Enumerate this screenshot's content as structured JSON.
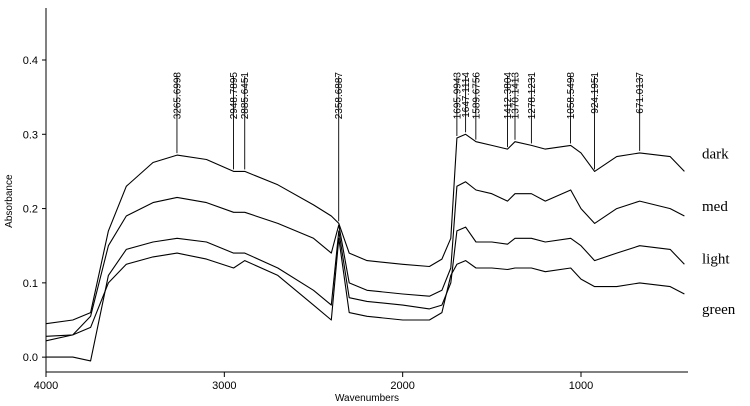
{
  "chart_data": {
    "type": "line",
    "title": "",
    "xlabel": "Wavenumbers",
    "ylabel": "Absorbance",
    "xlim": [
      4000,
      400
    ],
    "ylim": [
      -0.02,
      0.47
    ],
    "x_ticks": [
      "4000",
      "3000",
      "2000",
      "1000"
    ],
    "y_ticks": [
      "0.0",
      "0.1",
      "0.2",
      "0.3",
      "0.4"
    ],
    "peaks": [
      "3265.6998",
      "2948.7895",
      "2885.6451",
      "2358.6887",
      "1695.9943",
      "1647.1114",
      "1589.6756",
      "1412.3804",
      "1370.1413",
      "1278.1231",
      "1058.5498",
      "924.1951",
      "671.0137"
    ],
    "series": [
      {
        "name": "dark",
        "points": [
          [
            4000,
            0.045
          ],
          [
            3850,
            0.05
          ],
          [
            3750,
            0.06
          ],
          [
            3650,
            0.17
          ],
          [
            3550,
            0.23
          ],
          [
            3400,
            0.262
          ],
          [
            3265,
            0.272
          ],
          [
            3100,
            0.266
          ],
          [
            2948,
            0.25
          ],
          [
            2885,
            0.25
          ],
          [
            2700,
            0.232
          ],
          [
            2500,
            0.205
          ],
          [
            2400,
            0.19
          ],
          [
            2358,
            0.18
          ],
          [
            2300,
            0.14
          ],
          [
            2200,
            0.13
          ],
          [
            2000,
            0.125
          ],
          [
            1850,
            0.122
          ],
          [
            1780,
            0.132
          ],
          [
            1730,
            0.16
          ],
          [
            1696,
            0.295
          ],
          [
            1647,
            0.3
          ],
          [
            1589,
            0.29
          ],
          [
            1500,
            0.285
          ],
          [
            1412,
            0.28
          ],
          [
            1370,
            0.29
          ],
          [
            1278,
            0.285
          ],
          [
            1200,
            0.28
          ],
          [
            1058,
            0.285
          ],
          [
            1000,
            0.275
          ],
          [
            924,
            0.25
          ],
          [
            800,
            0.27
          ],
          [
            671,
            0.275
          ],
          [
            500,
            0.27
          ],
          [
            420,
            0.25
          ]
        ]
      },
      {
        "name": "med",
        "points": [
          [
            4000,
            0.022
          ],
          [
            3850,
            0.03
          ],
          [
            3750,
            0.055
          ],
          [
            3650,
            0.15
          ],
          [
            3550,
            0.19
          ],
          [
            3400,
            0.208
          ],
          [
            3265,
            0.215
          ],
          [
            3100,
            0.208
          ],
          [
            2948,
            0.195
          ],
          [
            2885,
            0.195
          ],
          [
            2700,
            0.18
          ],
          [
            2500,
            0.16
          ],
          [
            2400,
            0.14
          ],
          [
            2358,
            0.178
          ],
          [
            2300,
            0.1
          ],
          [
            2200,
            0.09
          ],
          [
            2000,
            0.085
          ],
          [
            1850,
            0.082
          ],
          [
            1780,
            0.09
          ],
          [
            1730,
            0.12
          ],
          [
            1696,
            0.23
          ],
          [
            1647,
            0.236
          ],
          [
            1589,
            0.225
          ],
          [
            1500,
            0.22
          ],
          [
            1412,
            0.21
          ],
          [
            1370,
            0.22
          ],
          [
            1278,
            0.22
          ],
          [
            1200,
            0.21
          ],
          [
            1058,
            0.225
          ],
          [
            1000,
            0.2
          ],
          [
            924,
            0.18
          ],
          [
            800,
            0.2
          ],
          [
            671,
            0.21
          ],
          [
            500,
            0.2
          ],
          [
            420,
            0.19
          ]
        ]
      },
      {
        "name": "light",
        "points": [
          [
            4000,
            0.0
          ],
          [
            3850,
            0.0
          ],
          [
            3750,
            -0.005
          ],
          [
            3650,
            0.11
          ],
          [
            3550,
            0.145
          ],
          [
            3400,
            0.155
          ],
          [
            3265,
            0.16
          ],
          [
            3100,
            0.155
          ],
          [
            2948,
            0.14
          ],
          [
            2885,
            0.14
          ],
          [
            2700,
            0.12
          ],
          [
            2500,
            0.09
          ],
          [
            2400,
            0.07
          ],
          [
            2358,
            0.17
          ],
          [
            2300,
            0.08
          ],
          [
            2200,
            0.075
          ],
          [
            2000,
            0.07
          ],
          [
            1850,
            0.065
          ],
          [
            1780,
            0.07
          ],
          [
            1730,
            0.1
          ],
          [
            1696,
            0.17
          ],
          [
            1647,
            0.175
          ],
          [
            1589,
            0.155
          ],
          [
            1500,
            0.155
          ],
          [
            1412,
            0.152
          ],
          [
            1370,
            0.16
          ],
          [
            1278,
            0.16
          ],
          [
            1200,
            0.155
          ],
          [
            1058,
            0.16
          ],
          [
            1000,
            0.15
          ],
          [
            924,
            0.13
          ],
          [
            800,
            0.14
          ],
          [
            671,
            0.15
          ],
          [
            500,
            0.145
          ],
          [
            420,
            0.125
          ]
        ]
      },
      {
        "name": "green",
        "points": [
          [
            4000,
            0.028
          ],
          [
            3850,
            0.03
          ],
          [
            3750,
            0.04
          ],
          [
            3650,
            0.1
          ],
          [
            3550,
            0.125
          ],
          [
            3400,
            0.135
          ],
          [
            3265,
            0.14
          ],
          [
            3100,
            0.132
          ],
          [
            2948,
            0.12
          ],
          [
            2885,
            0.13
          ],
          [
            2700,
            0.11
          ],
          [
            2500,
            0.07
          ],
          [
            2400,
            0.05
          ],
          [
            2358,
            0.16
          ],
          [
            2300,
            0.06
          ],
          [
            2200,
            0.055
          ],
          [
            2000,
            0.05
          ],
          [
            1850,
            0.05
          ],
          [
            1780,
            0.06
          ],
          [
            1730,
            0.11
          ],
          [
            1696,
            0.125
          ],
          [
            1647,
            0.13
          ],
          [
            1589,
            0.12
          ],
          [
            1500,
            0.12
          ],
          [
            1412,
            0.118
          ],
          [
            1370,
            0.12
          ],
          [
            1278,
            0.12
          ],
          [
            1200,
            0.115
          ],
          [
            1058,
            0.12
          ],
          [
            1000,
            0.105
          ],
          [
            924,
            0.095
          ],
          [
            800,
            0.095
          ],
          [
            671,
            0.1
          ],
          [
            500,
            0.095
          ],
          [
            420,
            0.085
          ]
        ]
      }
    ]
  }
}
